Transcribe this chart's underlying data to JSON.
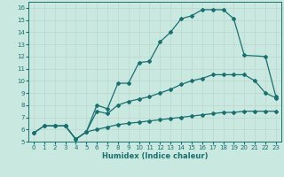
{
  "xlabel": "Humidex (Indice chaleur)",
  "bg_color": "#c8e8e0",
  "grid_color": "#c0d8d0",
  "line_color": "#1a7070",
  "xlim": [
    -0.5,
    23.5
  ],
  "ylim": [
    5,
    16.5
  ],
  "xticks": [
    0,
    1,
    2,
    3,
    4,
    5,
    6,
    7,
    8,
    9,
    10,
    11,
    12,
    13,
    14,
    15,
    16,
    17,
    18,
    19,
    20,
    21,
    22,
    23
  ],
  "yticks": [
    5,
    6,
    7,
    8,
    9,
    10,
    11,
    12,
    13,
    14,
    15,
    16
  ],
  "curve_top_x": [
    3,
    4,
    5,
    6,
    7,
    8,
    9,
    10,
    11,
    12,
    13,
    14,
    15,
    16,
    17,
    18,
    19,
    20,
    22,
    23
  ],
  "curve_top_y": [
    6.3,
    5.2,
    5.8,
    8.0,
    7.7,
    9.8,
    9.8,
    11.5,
    11.6,
    13.2,
    14.0,
    15.1,
    15.35,
    15.85,
    15.85,
    15.85,
    15.1,
    12.1,
    12.0,
    8.7
  ],
  "curve_mid_x": [
    0,
    1,
    2,
    3,
    4,
    5,
    6,
    7,
    8,
    9,
    10,
    11,
    12,
    13,
    14,
    15,
    16,
    17,
    18,
    19,
    20,
    21,
    22,
    23
  ],
  "curve_mid_y": [
    5.7,
    6.3,
    6.3,
    6.3,
    5.2,
    5.8,
    7.5,
    7.3,
    8.0,
    8.3,
    8.5,
    8.7,
    9.0,
    9.3,
    9.7,
    10.0,
    10.2,
    10.5,
    10.5,
    10.5,
    10.5,
    10.0,
    9.0,
    8.6
  ],
  "curve_bot_x": [
    0,
    1,
    2,
    3,
    4,
    5,
    6,
    7,
    8,
    9,
    10,
    11,
    12,
    13,
    14,
    15,
    16,
    17,
    18,
    19,
    20,
    21,
    22,
    23
  ],
  "curve_bot_y": [
    5.7,
    6.3,
    6.3,
    6.3,
    5.2,
    5.8,
    6.0,
    6.2,
    6.4,
    6.5,
    6.6,
    6.7,
    6.8,
    6.9,
    7.0,
    7.1,
    7.2,
    7.3,
    7.4,
    7.4,
    7.5,
    7.5,
    7.5,
    7.5
  ]
}
